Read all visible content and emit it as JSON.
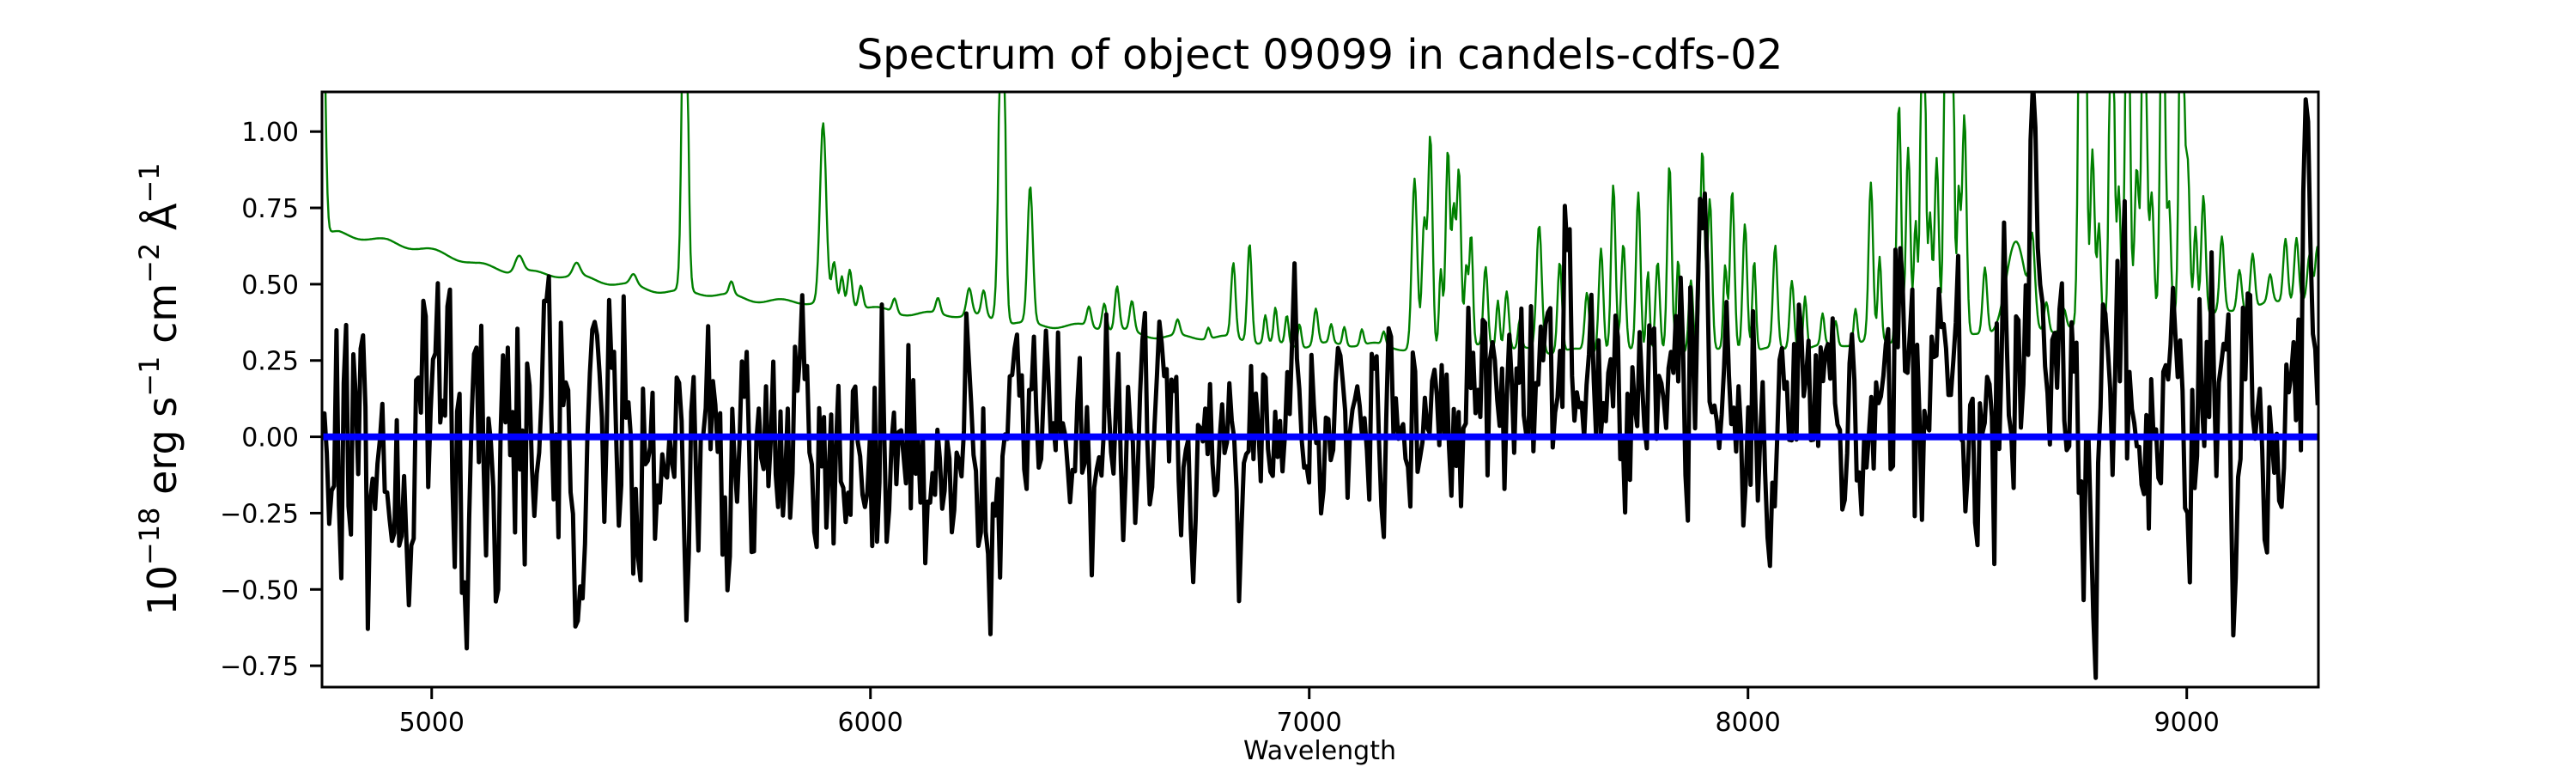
{
  "figure": {
    "background": "#ffffff",
    "title": "Spectrum of object 09099 in candels-cdfs-02"
  },
  "chart_data": {
    "type": "line",
    "title": "Spectrum of object 09099 in candels-cdfs-02",
    "xlabel": "Wavelength",
    "ylabel": "10⁻¹⁸ erg s⁻¹ cm⁻² Å⁻¹",
    "ylabel_parts": [
      {
        "t": "10"
      },
      {
        "t": "−18",
        "sup": true
      },
      {
        "t": " erg s"
      },
      {
        "t": "−1",
        "sup": true
      },
      {
        "t": " cm"
      },
      {
        "t": "−2",
        "sup": true
      },
      {
        "t": " Å"
      },
      {
        "t": "−1",
        "sup": true
      }
    ],
    "xlim": [
      4750,
      9300
    ],
    "ylim": [
      -0.82,
      1.13
    ],
    "grid": false,
    "legend": null,
    "axes_color": "#000000",
    "xticks": [
      {
        "v": 5000,
        "label": "5000"
      },
      {
        "v": 6000,
        "label": "6000"
      },
      {
        "v": 7000,
        "label": "7000"
      },
      {
        "v": 8000,
        "label": "8000"
      },
      {
        "v": 9000,
        "label": "9000"
      }
    ],
    "yticks": [
      {
        "v": 1.0,
        "label": "1.00"
      },
      {
        "v": 0.75,
        "label": "0.75"
      },
      {
        "v": 0.5,
        "label": "0.50"
      },
      {
        "v": 0.25,
        "label": "0.25"
      },
      {
        "v": 0.0,
        "label": "0.00"
      },
      {
        "v": -0.25,
        "label": "−0.25"
      },
      {
        "v": -0.5,
        "label": "−0.50"
      },
      {
        "v": -0.75,
        "label": "−0.75"
      }
    ],
    "series": [
      {
        "name": "sky-noise-spectrum",
        "kind": "continuum_plus_spikes",
        "color": "#008000",
        "line_width": 2.4,
        "x_step": 2.5,
        "clip_top_value": 1.18,
        "wiggle": {
          "amp1": 0.008,
          "period1": 18,
          "amp2": 0.005,
          "period2": 47
        },
        "continuum": [
          [
            4750,
            0.655
          ],
          [
            4790,
            0.665
          ],
          [
            4850,
            0.655
          ],
          [
            4900,
            0.645
          ],
          [
            4950,
            0.625
          ],
          [
            5000,
            0.605
          ],
          [
            5050,
            0.585
          ],
          [
            5100,
            0.565
          ],
          [
            5150,
            0.555
          ],
          [
            5250,
            0.535
          ],
          [
            5350,
            0.515
          ],
          [
            5450,
            0.5
          ],
          [
            5550,
            0.475
          ],
          [
            5650,
            0.462
          ],
          [
            5750,
            0.452
          ],
          [
            5850,
            0.442
          ],
          [
            5950,
            0.43
          ],
          [
            6050,
            0.415
          ],
          [
            6150,
            0.4
          ],
          [
            6250,
            0.39
          ],
          [
            6350,
            0.375
          ],
          [
            6450,
            0.362
          ],
          [
            6550,
            0.35
          ],
          [
            6650,
            0.335
          ],
          [
            6750,
            0.325
          ],
          [
            6850,
            0.315
          ],
          [
            6950,
            0.305
          ],
          [
            7050,
            0.3
          ],
          [
            7150,
            0.298
          ],
          [
            7250,
            0.293
          ],
          [
            7350,
            0.29
          ],
          [
            7450,
            0.288
          ],
          [
            7550,
            0.285
          ],
          [
            7650,
            0.28
          ],
          [
            7750,
            0.278
          ],
          [
            7850,
            0.278
          ],
          [
            7950,
            0.28
          ],
          [
            8050,
            0.285
          ],
          [
            8150,
            0.298
          ],
          [
            8250,
            0.305
          ],
          [
            8350,
            0.312
          ],
          [
            8450,
            0.32
          ],
          [
            8550,
            0.332
          ],
          [
            8650,
            0.345
          ],
          [
            8750,
            0.358
          ],
          [
            8850,
            0.372
          ],
          [
            8950,
            0.385
          ],
          [
            9050,
            0.4
          ],
          [
            9150,
            0.42
          ],
          [
            9250,
            0.448
          ],
          [
            9300,
            0.468
          ]
        ],
        "spikes": [
          [
            4750,
            1.8,
            6
          ],
          [
            5199,
            0.6,
            9
          ],
          [
            5330,
            0.56,
            8
          ],
          [
            5460,
            0.53,
            7
          ],
          [
            5577,
            1.8,
            6
          ],
          [
            5683,
            0.5,
            5
          ],
          [
            5892,
            1.02,
            7
          ],
          [
            5917,
            0.56,
            5
          ],
          [
            5935,
            0.52,
            4
          ],
          [
            5953,
            0.55,
            5
          ],
          [
            5978,
            0.5,
            5
          ],
          [
            6055,
            0.46,
            5
          ],
          [
            6154,
            0.45,
            5
          ],
          [
            6225,
            0.48,
            6
          ],
          [
            6258,
            0.47,
            5
          ],
          [
            6287,
            0.44,
            4
          ],
          [
            6300,
            1.8,
            6
          ],
          [
            6364,
            0.82,
            6
          ],
          [
            6498,
            0.42,
            5
          ],
          [
            6533,
            0.44,
            5
          ],
          [
            6562,
            0.49,
            5
          ],
          [
            6596,
            0.44,
            5
          ],
          [
            6700,
            0.38,
            5
          ],
          [
            6770,
            0.36,
            4
          ],
          [
            6827,
            0.56,
            5
          ],
          [
            6864,
            0.64,
            5
          ],
          [
            6900,
            0.4,
            4
          ],
          [
            6923,
            0.42,
            4
          ],
          [
            6949,
            0.4,
            4
          ],
          [
            6978,
            0.38,
            4
          ],
          [
            7015,
            0.42,
            5
          ],
          [
            7050,
            0.36,
            4
          ],
          [
            7080,
            0.36,
            4
          ],
          [
            7120,
            0.35,
            4
          ],
          [
            7170,
            0.34,
            4
          ],
          [
            7240,
            0.85,
            6
          ],
          [
            7262,
            0.7,
            5
          ],
          [
            7276,
            0.98,
            5
          ],
          [
            7300,
            0.55,
            4
          ],
          [
            7316,
            0.95,
            5
          ],
          [
            7329,
            0.72,
            4
          ],
          [
            7341,
            0.88,
            5
          ],
          [
            7358,
            0.55,
            4
          ],
          [
            7369,
            0.65,
            4
          ],
          [
            7402,
            0.55,
            5
          ],
          [
            7430,
            0.45,
            4
          ],
          [
            7450,
            0.48,
            5
          ],
          [
            7480,
            0.38,
            4
          ],
          [
            7524,
            0.7,
            6
          ],
          [
            7571,
            0.58,
            5
          ],
          [
            7633,
            0.47,
            5
          ],
          [
            7665,
            0.62,
            5
          ],
          [
            7693,
            0.82,
            5
          ],
          [
            7716,
            0.62,
            5
          ],
          [
            7750,
            0.8,
            5
          ],
          [
            7772,
            0.55,
            4
          ],
          [
            7794,
            0.58,
            5
          ],
          [
            7821,
            0.89,
            5
          ],
          [
            7841,
            0.58,
            4
          ],
          [
            7870,
            0.52,
            5
          ],
          [
            7896,
            0.95,
            5
          ],
          [
            7913,
            0.78,
            5
          ],
          [
            7948,
            0.55,
            4
          ],
          [
            7964,
            0.8,
            5
          ],
          [
            7993,
            0.7,
            5
          ],
          [
            8014,
            0.58,
            4
          ],
          [
            8062,
            0.62,
            5
          ],
          [
            8100,
            0.52,
            5
          ],
          [
            8130,
            0.47,
            4
          ],
          [
            8170,
            0.4,
            4
          ],
          [
            8200,
            0.38,
            4
          ],
          [
            8245,
            0.42,
            4
          ],
          [
            8280,
            0.82,
            5
          ],
          [
            8300,
            0.58,
            4
          ],
          [
            8344,
            1.1,
            5
          ],
          [
            8365,
            0.95,
            5
          ],
          [
            8382,
            0.7,
            4
          ],
          [
            8399,
            1.8,
            5
          ],
          [
            8415,
            0.72,
            4
          ],
          [
            8430,
            0.92,
            5
          ],
          [
            8452,
            1.8,
            5
          ],
          [
            8465,
            1.8,
            4
          ],
          [
            8480,
            0.8,
            4
          ],
          [
            8493,
            1.05,
            5
          ],
          [
            8540,
            0.55,
            5
          ],
          [
            8610,
            0.63,
            22
          ],
          [
            8648,
            0.6,
            6
          ],
          [
            8680,
            0.45,
            5
          ],
          [
            8720,
            0.42,
            5
          ],
          [
            8758,
            1.8,
            5
          ],
          [
            8768,
            1.8,
            4
          ],
          [
            8785,
            0.95,
            5
          ],
          [
            8800,
            0.7,
            4
          ],
          [
            8829,
            1.8,
            5
          ],
          [
            8845,
            0.8,
            4
          ],
          [
            8865,
            1.8,
            5
          ],
          [
            8886,
            0.88,
            5
          ],
          [
            8903,
            1.8,
            5
          ],
          [
            8920,
            0.8,
            5
          ],
          [
            8945,
            1.8,
            5
          ],
          [
            8960,
            0.75,
            4
          ],
          [
            8988,
            1.8,
            5
          ],
          [
            9002,
            0.9,
            5
          ],
          [
            9020,
            0.7,
            4
          ],
          [
            9038,
            0.8,
            5
          ],
          [
            9080,
            0.65,
            5
          ],
          [
            9120,
            0.55,
            5
          ],
          [
            9150,
            0.6,
            5
          ],
          [
            9190,
            0.52,
            5
          ],
          [
            9225,
            0.65,
            5
          ],
          [
            9250,
            0.66,
            5
          ],
          [
            9280,
            0.6,
            5
          ],
          [
            9298,
            0.62,
            5
          ]
        ]
      },
      {
        "name": "object-spectrum",
        "kind": "noisy_spectrum",
        "color": "#000000",
        "line_width": 5,
        "x_step": 5.5,
        "noise_seed": 20,
        "noise_ar": 0.3,
        "clip_values": [
          -0.79,
          1.16
        ],
        "mean": [
          [
            4750,
            0.0
          ],
          [
            5200,
            0.0
          ],
          [
            5600,
            -0.005
          ],
          [
            6000,
            0.0
          ],
          [
            6500,
            0.02
          ],
          [
            6900,
            0.04
          ],
          [
            7200,
            0.08
          ],
          [
            7450,
            0.17
          ],
          [
            7620,
            0.21
          ],
          [
            7780,
            0.15
          ],
          [
            8000,
            0.12
          ],
          [
            8300,
            0.12
          ],
          [
            8600,
            0.14
          ],
          [
            8900,
            0.16
          ],
          [
            9100,
            0.13
          ],
          [
            9300,
            0.1
          ]
        ],
        "rms": [
          [
            4750,
            0.22
          ],
          [
            5000,
            0.23
          ],
          [
            5300,
            0.22
          ],
          [
            5600,
            0.2
          ],
          [
            6000,
            0.19
          ],
          [
            6400,
            0.175
          ],
          [
            6800,
            0.165
          ],
          [
            7100,
            0.15
          ],
          [
            7400,
            0.17
          ],
          [
            7700,
            0.19
          ],
          [
            8000,
            0.17
          ],
          [
            8300,
            0.2
          ],
          [
            8600,
            0.22
          ],
          [
            8900,
            0.23
          ],
          [
            9100,
            0.22
          ],
          [
            9300,
            0.21
          ]
        ],
        "features": [
          [
            4860,
            -0.45,
            7
          ],
          [
            4945,
            -0.5,
            7
          ],
          [
            5075,
            -0.48,
            7
          ],
          [
            5263,
            0.55,
            7
          ],
          [
            5330,
            -0.5,
            7
          ],
          [
            5675,
            -0.45,
            7
          ],
          [
            5840,
            0.42,
            7
          ],
          [
            5947,
            -0.45,
            7
          ],
          [
            6042,
            -0.42,
            7
          ],
          [
            6275,
            -0.4,
            7
          ],
          [
            6712,
            -0.42,
            7
          ],
          [
            6840,
            -0.42,
            7
          ],
          [
            6966,
            0.35,
            7
          ],
          [
            7587,
            0.5,
            8
          ],
          [
            7845,
            0.45,
            8
          ],
          [
            7895,
            0.55,
            8
          ],
          [
            8050,
            -0.35,
            7
          ],
          [
            8250,
            -0.4,
            7
          ],
          [
            8350,
            0.5,
            8
          ],
          [
            8455,
            -0.45,
            7
          ],
          [
            8648,
            0.7,
            8
          ],
          [
            8760,
            -0.5,
            7
          ],
          [
            8790,
            -0.72,
            8
          ],
          [
            8855,
            0.55,
            7
          ],
          [
            9105,
            -0.5,
            7
          ],
          [
            9140,
            0.5,
            7
          ],
          [
            9270,
            0.6,
            7
          ]
        ]
      },
      {
        "name": "zero-flux-line",
        "kind": "hline",
        "color": "#0000ff",
        "line_width": 8,
        "y": 0
      }
    ]
  }
}
